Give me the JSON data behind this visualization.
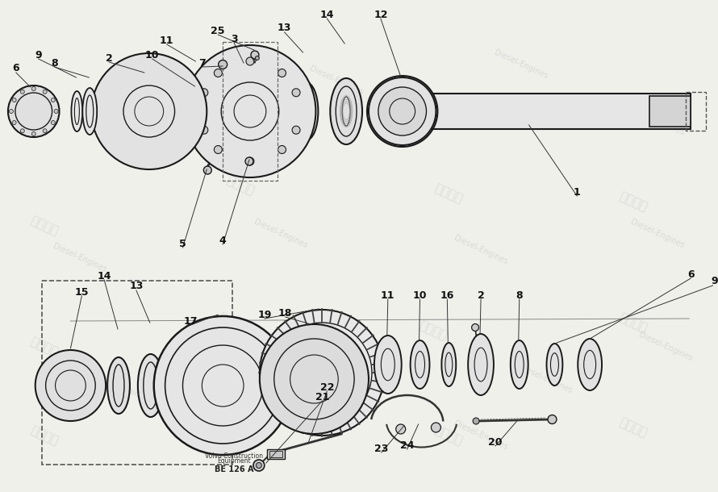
{
  "background_color": "#f0f0eb",
  "footer_text_1": "Volvo Construction",
  "footer_text_2": "Equipment",
  "footer_code": "BE 126 A"
}
